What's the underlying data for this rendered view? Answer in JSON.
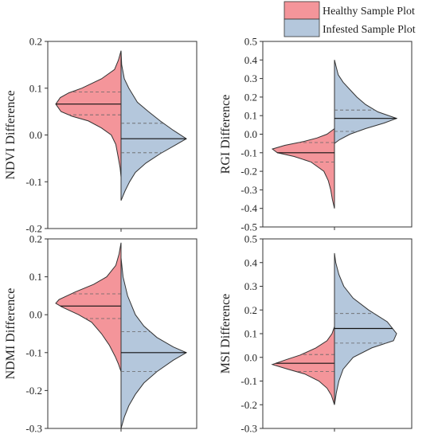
{
  "legend": {
    "position": "top-right",
    "items": [
      {
        "label": "Healthy Sample Plot",
        "color": "#f4959a"
      },
      {
        "label": "Infested Sample Plot",
        "color": "#b4c7dc"
      }
    ]
  },
  "colors": {
    "healthy": "#f4959a",
    "infested": "#b4c7dc",
    "outline": "#333333"
  },
  "chart_data": [
    {
      "type": "violin",
      "split": true,
      "panel": "top-left",
      "ylabel": "NDVI Difference",
      "ylim": [
        -0.2,
        0.2
      ],
      "yticks": [
        -0.2,
        -0.1,
        0.0,
        0.1,
        0.2
      ],
      "tick_labels": [
        "-0.2",
        "-0.1",
        "0.0",
        "0.1",
        "0.2"
      ],
      "series": [
        {
          "name": "Healthy Sample Plot",
          "side": "left",
          "min": -0.09,
          "max": 0.18,
          "q1": 0.043,
          "median": 0.066,
          "q3": 0.092,
          "density": [
            [
              0.18,
              0.0
            ],
            [
              0.16,
              0.04
            ],
            [
              0.14,
              0.1
            ],
            [
              0.12,
              0.3
            ],
            [
              0.1,
              0.6
            ],
            [
              0.09,
              0.8
            ],
            [
              0.08,
              0.93
            ],
            [
              0.066,
              1.0
            ],
            [
              0.05,
              0.92
            ],
            [
              0.04,
              0.75
            ],
            [
              0.03,
              0.5
            ],
            [
              0.015,
              0.3
            ],
            [
              0.0,
              0.15
            ],
            [
              -0.02,
              0.08
            ],
            [
              -0.05,
              0.04
            ],
            [
              -0.07,
              0.015
            ],
            [
              -0.09,
              0.0
            ]
          ]
        },
        {
          "name": "Infested Sample Plot",
          "side": "right",
          "min": -0.14,
          "max": 0.18,
          "q1": -0.038,
          "median": -0.008,
          "q3": 0.025,
          "density": [
            [
              0.18,
              0.0
            ],
            [
              0.15,
              0.01
            ],
            [
              0.12,
              0.05
            ],
            [
              0.1,
              0.12
            ],
            [
              0.07,
              0.25
            ],
            [
              0.05,
              0.42
            ],
            [
              0.03,
              0.6
            ],
            [
              0.01,
              0.8
            ],
            [
              -0.008,
              1.0
            ],
            [
              -0.02,
              0.85
            ],
            [
              -0.04,
              0.6
            ],
            [
              -0.06,
              0.38
            ],
            [
              -0.08,
              0.22
            ],
            [
              -0.1,
              0.13
            ],
            [
              -0.12,
              0.06
            ],
            [
              -0.14,
              0.0
            ]
          ]
        }
      ]
    },
    {
      "type": "violin",
      "split": true,
      "panel": "top-right",
      "ylabel": "RGI Difference",
      "ylim": [
        -0.5,
        0.5
      ],
      "yticks": [
        -0.5,
        -0.4,
        -0.3,
        -0.2,
        -0.1,
        0.0,
        0.1,
        0.2,
        0.3,
        0.4,
        0.5
      ],
      "tick_labels": [
        "-0.5",
        "-0.4",
        "-0.3",
        "-0.2",
        "-0.1",
        "0.0",
        "0.1",
        "0.2",
        "0.3",
        "0.4",
        "0.5"
      ],
      "series": [
        {
          "name": "Healthy Sample Plot",
          "side": "left",
          "min": -0.4,
          "max": 0.03,
          "q1": -0.15,
          "median": -0.1,
          "q3": -0.045,
          "density": [
            [
              0.03,
              0.0
            ],
            [
              0.0,
              0.12
            ],
            [
              -0.02,
              0.28
            ],
            [
              -0.04,
              0.5
            ],
            [
              -0.06,
              0.8
            ],
            [
              -0.08,
              1.0
            ],
            [
              -0.1,
              0.92
            ],
            [
              -0.12,
              0.65
            ],
            [
              -0.15,
              0.38
            ],
            [
              -0.2,
              0.17
            ],
            [
              -0.25,
              0.1
            ],
            [
              -0.3,
              0.06
            ],
            [
              -0.35,
              0.035
            ],
            [
              -0.4,
              0.0
            ]
          ]
        },
        {
          "name": "Infested Sample Plot",
          "side": "right",
          "min": -0.05,
          "max": 0.4,
          "q1": 0.015,
          "median": 0.085,
          "q3": 0.13,
          "density": [
            [
              0.4,
              0.0
            ],
            [
              0.36,
              0.03
            ],
            [
              0.32,
              0.06
            ],
            [
              0.28,
              0.14
            ],
            [
              0.24,
              0.25
            ],
            [
              0.2,
              0.36
            ],
            [
              0.16,
              0.5
            ],
            [
              0.12,
              0.7
            ],
            [
              0.085,
              1.0
            ],
            [
              0.06,
              0.8
            ],
            [
              0.03,
              0.5
            ],
            [
              0.0,
              0.25
            ],
            [
              -0.03,
              0.08
            ],
            [
              -0.05,
              0.0
            ]
          ]
        }
      ]
    },
    {
      "type": "violin",
      "split": true,
      "panel": "bottom-left",
      "ylabel": "NDMI Difference",
      "ylim": [
        -0.3,
        0.2
      ],
      "yticks": [
        -0.3,
        -0.2,
        -0.1,
        0.0,
        0.1,
        0.2
      ],
      "tick_labels": [
        "-0.3",
        "-0.2",
        "-0.1",
        "0.0",
        "0.1",
        "0.2"
      ],
      "series": [
        {
          "name": "Healthy Sample Plot",
          "side": "left",
          "min": -0.15,
          "max": 0.19,
          "q1": -0.01,
          "median": 0.023,
          "q3": 0.055,
          "density": [
            [
              0.19,
              0.0
            ],
            [
              0.16,
              0.03
            ],
            [
              0.13,
              0.08
            ],
            [
              0.1,
              0.22
            ],
            [
              0.08,
              0.42
            ],
            [
              0.06,
              0.7
            ],
            [
              0.04,
              0.95
            ],
            [
              0.03,
              1.0
            ],
            [
              0.02,
              0.9
            ],
            [
              0.0,
              0.65
            ],
            [
              -0.02,
              0.45
            ],
            [
              -0.05,
              0.3
            ],
            [
              -0.08,
              0.18
            ],
            [
              -0.11,
              0.09
            ],
            [
              -0.13,
              0.04
            ],
            [
              -0.15,
              0.0
            ]
          ]
        },
        {
          "name": "Infested Sample Plot",
          "side": "right",
          "min": -0.3,
          "max": 0.15,
          "q1": -0.15,
          "median": -0.1,
          "q3": -0.045,
          "density": [
            [
              0.15,
              0.0
            ],
            [
              0.1,
              0.03
            ],
            [
              0.05,
              0.1
            ],
            [
              0.0,
              0.22
            ],
            [
              -0.03,
              0.35
            ],
            [
              -0.06,
              0.55
            ],
            [
              -0.085,
              0.8
            ],
            [
              -0.1,
              1.0
            ],
            [
              -0.12,
              0.8
            ],
            [
              -0.15,
              0.55
            ],
            [
              -0.18,
              0.35
            ],
            [
              -0.21,
              0.22
            ],
            [
              -0.24,
              0.12
            ],
            [
              -0.27,
              0.05
            ],
            [
              -0.3,
              0.0
            ]
          ]
        }
      ]
    },
    {
      "type": "violin",
      "split": true,
      "panel": "bottom-right",
      "ylabel": "MSI Difference",
      "ylim": [
        -0.3,
        0.5
      ],
      "yticks": [
        -0.3,
        -0.2,
        -0.1,
        0.0,
        0.1,
        0.2,
        0.3,
        0.4,
        0.5
      ],
      "tick_labels": [
        "-0.3",
        "-0.2",
        "-0.1",
        "0.0",
        "0.1",
        "0.2",
        "0.3",
        "0.4",
        "0.5"
      ],
      "series": [
        {
          "name": "Healthy Sample Plot",
          "side": "left",
          "min": -0.2,
          "max": 0.13,
          "q1": -0.06,
          "median": -0.025,
          "q3": 0.012,
          "density": [
            [
              0.13,
              0.0
            ],
            [
              0.1,
              0.04
            ],
            [
              0.07,
              0.12
            ],
            [
              0.04,
              0.3
            ],
            [
              0.01,
              0.55
            ],
            [
              -0.01,
              0.78
            ],
            [
              -0.03,
              1.0
            ],
            [
              -0.05,
              0.75
            ],
            [
              -0.07,
              0.48
            ],
            [
              -0.1,
              0.25
            ],
            [
              -0.13,
              0.12
            ],
            [
              -0.16,
              0.05
            ],
            [
              -0.2,
              0.0
            ]
          ]
        },
        {
          "name": "Infested Sample Plot",
          "side": "right",
          "min": -0.2,
          "max": 0.44,
          "q1": 0.06,
          "median": 0.122,
          "q3": 0.185,
          "density": [
            [
              0.44,
              0.0
            ],
            [
              0.4,
              0.02
            ],
            [
              0.35,
              0.07
            ],
            [
              0.3,
              0.15
            ],
            [
              0.25,
              0.3
            ],
            [
              0.2,
              0.55
            ],
            [
              0.15,
              0.85
            ],
            [
              0.1,
              1.0
            ],
            [
              0.07,
              0.95
            ],
            [
              0.04,
              0.6
            ],
            [
              0.0,
              0.3
            ],
            [
              -0.05,
              0.14
            ],
            [
              -0.1,
              0.07
            ],
            [
              -0.15,
              0.03
            ],
            [
              -0.2,
              0.0
            ]
          ]
        }
      ]
    }
  ]
}
